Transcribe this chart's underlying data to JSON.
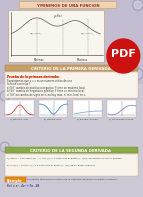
{
  "title": "Y MINIMOS DE UNA FUNCION",
  "slide_bg": "#c8c8d8",
  "slide_bg2": "#d0c8d8",
  "top_area_bg": "#c0b8cc",
  "diagram_bg": "#f5f0e8",
  "diagram_border": "#b8a080",
  "section1_title": "CRITERIO DE LA PRIMERA DERIVADA",
  "section1_bg": "#c8a060",
  "section1_text": "#ffffff",
  "section2_title": "CRITERIO DE LA SEGUNDA DERIVADA",
  "section2_bg": "#88aa44",
  "section2_text": "#ffffff",
  "text_box_bg": "#f8f4ec",
  "text_box_border": "#ddccaa",
  "red_title": "#cc3322",
  "dark_text": "#333333",
  "blue_text": "#224488",
  "ejemplo_bg": "#ee8800",
  "ejemplo_text": "#ffffff",
  "pdf_bg": "#cc1111",
  "mini_colors": [
    "#cc4444",
    "#4488cc",
    "#88aacc",
    "#8888cc"
  ],
  "circle_color": "#9999bb"
}
